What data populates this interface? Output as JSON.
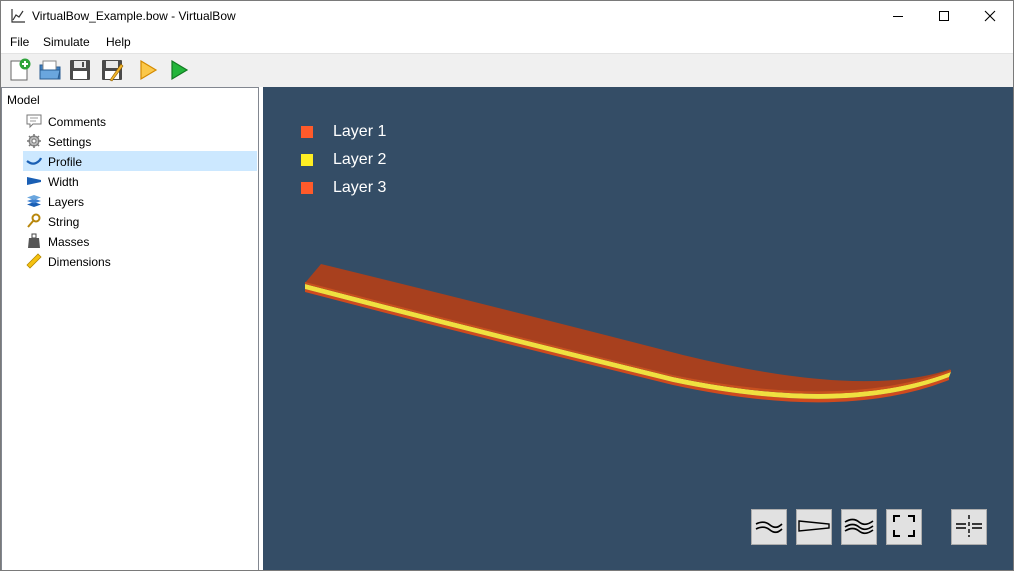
{
  "window": {
    "title": "VirtualBow_Example.bow - VirtualBow",
    "app_icon": "chart-icon",
    "controls": [
      "minimize-icon",
      "maximize-icon",
      "close-icon"
    ]
  },
  "menu": {
    "items": [
      {
        "label": "File"
      },
      {
        "label": "Simulate"
      },
      {
        "label": "Help"
      }
    ]
  },
  "toolbar": {
    "buttons": [
      "new-file-icon",
      "open-file-icon",
      "save-icon",
      "save-as-icon",
      "run-statics-icon",
      "run-dynamics-icon"
    ]
  },
  "tree": {
    "root_label": "Model",
    "selected": "Profile",
    "items": [
      {
        "label": "Comments",
        "icon": "comment-icon"
      },
      {
        "label": "Settings",
        "icon": "gear-icon"
      },
      {
        "label": "Profile",
        "icon": "profile-icon"
      },
      {
        "label": "Width",
        "icon": "width-icon"
      },
      {
        "label": "Layers",
        "icon": "layers-icon"
      },
      {
        "label": "String",
        "icon": "string-icon"
      },
      {
        "label": "Masses",
        "icon": "weight-icon"
      },
      {
        "label": "Dimensions",
        "icon": "ruler-icon"
      }
    ]
  },
  "viewport": {
    "background_color": "#344d66",
    "legend": [
      {
        "label": "Layer 1",
        "color": "#ff5a2a"
      },
      {
        "label": "Layer 2",
        "color": "#ffee22"
      },
      {
        "label": "Layer 3",
        "color": "#ff5a2a"
      }
    ],
    "limb_colors": {
      "top": "#a8401e",
      "middle": "#f0e040",
      "bottom": "#c84a20"
    },
    "view_buttons": [
      "profile-view-icon",
      "width-view-icon",
      "3d-view-icon",
      "fit-view-icon",
      "symmetric-view-icon"
    ]
  }
}
